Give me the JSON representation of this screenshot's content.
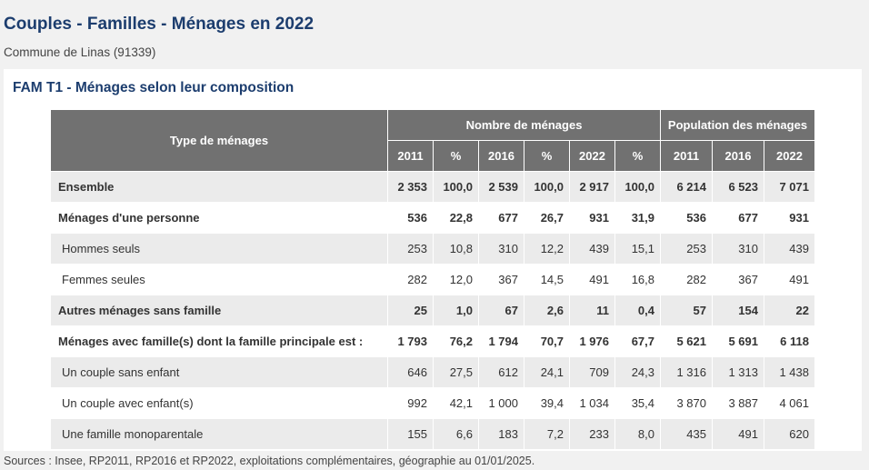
{
  "header": {
    "title": "Couples - Familles - Ménages en 2022",
    "subtitle": "Commune de Linas (91339)"
  },
  "table": {
    "title": "FAM T1 - Ménages selon leur composition",
    "col_type": "Type de ménages",
    "group_nombre": "Nombre de ménages",
    "group_population": "Population des ménages",
    "subheaders": [
      "2011",
      "%",
      "2016",
      "%",
      "2022",
      "%",
      "2011",
      "2016",
      "2022"
    ],
    "rows": [
      {
        "label": "Ensemble",
        "values": [
          "2 353",
          "100,0",
          "2 539",
          "100,0",
          "2 917",
          "100,0",
          "6 214",
          "6 523",
          "7 071"
        ]
      },
      {
        "label": "Ménages d'une personne",
        "values": [
          "536",
          "22,8",
          "677",
          "26,7",
          "931",
          "31,9",
          "536",
          "677",
          "931"
        ]
      },
      {
        "label": "Hommes seuls",
        "values": [
          "253",
          "10,8",
          "310",
          "12,2",
          "439",
          "15,1",
          "253",
          "310",
          "439"
        ]
      },
      {
        "label": "Femmes seules",
        "values": [
          "282",
          "12,0",
          "367",
          "14,5",
          "491",
          "16,8",
          "282",
          "367",
          "491"
        ]
      },
      {
        "label": "Autres ménages sans famille",
        "values": [
          "25",
          "1,0",
          "67",
          "2,6",
          "11",
          "0,4",
          "57",
          "154",
          "22"
        ]
      },
      {
        "label": "Ménages avec famille(s) dont la famille principale est :",
        "values": [
          "1 793",
          "76,2",
          "1 794",
          "70,7",
          "1 976",
          "67,7",
          "5 621",
          "5 691",
          "6 118"
        ]
      },
      {
        "label": "Un couple sans enfant",
        "values": [
          "646",
          "27,5",
          "612",
          "24,1",
          "709",
          "24,3",
          "1 316",
          "1 313",
          "1 438"
        ]
      },
      {
        "label": "Un couple avec enfant(s)",
        "values": [
          "992",
          "42,1",
          "1 000",
          "39,4",
          "1 034",
          "35,4",
          "3 870",
          "3 887",
          "4 061"
        ]
      },
      {
        "label": "Une famille monoparentale",
        "values": [
          "155",
          "6,6",
          "183",
          "7,2",
          "233",
          "8,0",
          "435",
          "491",
          "620"
        ]
      }
    ]
  },
  "footer": {
    "sources": "Sources : Insee, RP2011, RP2016 et RP2022, exploitations complémentaires, géographie au 01/01/2025."
  }
}
